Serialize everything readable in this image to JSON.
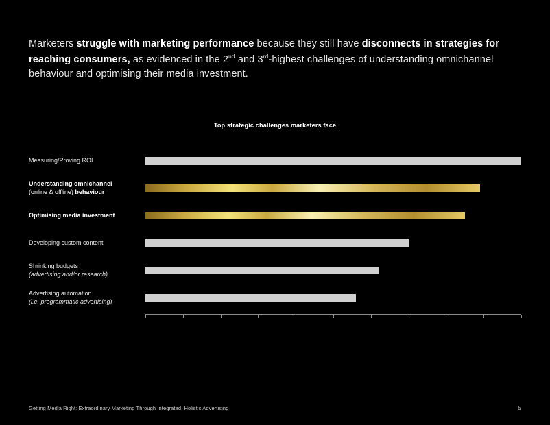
{
  "headline": {
    "pre": "Marketers ",
    "bold1": "struggle with marketing performance",
    "mid1": " because they still have ",
    "bold2": "disconnects in strategies for reaching consumers,",
    "tail1": " as evidenced in the 2",
    "sup1": "nd",
    "tail2": " and 3",
    "sup2": "rd",
    "tail3": "-highest challenges of understanding omnichannel behaviour and optimising their media investment."
  },
  "chart": {
    "title": "Top strategic challenges marketers face",
    "max_tick": 100,
    "tick_positions": [
      0,
      10,
      20,
      30,
      40,
      50,
      60,
      70,
      80,
      90,
      100
    ],
    "rows": [
      {
        "main": "Measuring/Proving ROI",
        "sub": "",
        "bold": false,
        "value": 100,
        "color": "gray"
      },
      {
        "main": "Understanding omnichannel",
        "paren": "(online & offline)",
        "trail": " behaviour",
        "sub": "",
        "bold": true,
        "value": 89,
        "color": "gold"
      },
      {
        "main": "Optimising media investment",
        "sub": "",
        "bold": true,
        "value": 85,
        "color": "gold"
      },
      {
        "main": "Developing custom content",
        "sub": "",
        "bold": false,
        "value": 70,
        "color": "gray"
      },
      {
        "main": "Shrinking budgets",
        "sub": "(advertising and/or research)",
        "bold": false,
        "value": 62,
        "color": "gray"
      },
      {
        "main": "Advertising automation",
        "sub": "(i.e. programmatic advertising)",
        "bold": false,
        "value": 56,
        "color": "gray"
      }
    ]
  },
  "footer": "Getting Media Right: Extraordinary Marketing Through Integrated, Holistic Advertising",
  "page_number": "5"
}
